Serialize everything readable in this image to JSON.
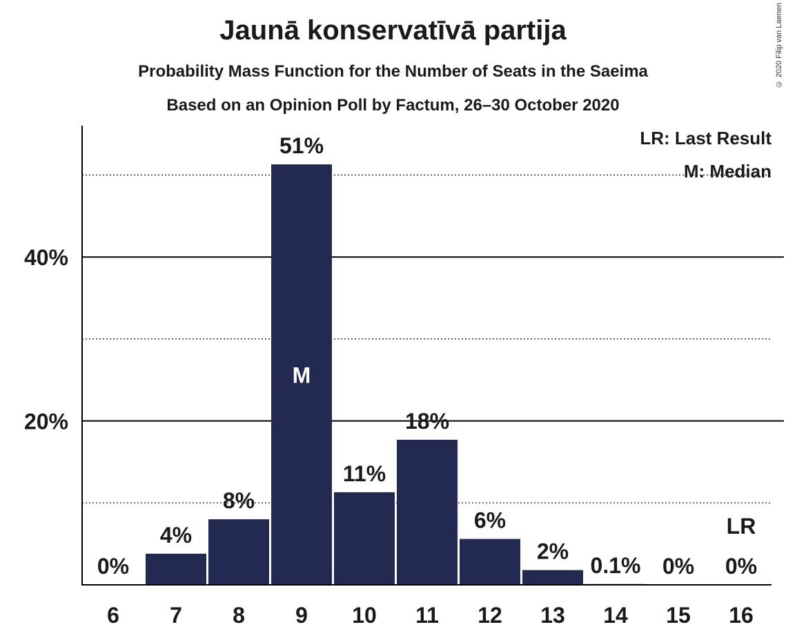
{
  "header": {
    "title": "Jaunā konservatīvā partija",
    "subtitle1": "Probability Mass Function for the Number of Seats in the Saeima",
    "subtitle2": "Based on an Opinion Poll by Factum, 26–30 October 2020",
    "copyright": "© 2020 Filip van Laenen"
  },
  "legend": {
    "last_result": "LR: Last Result",
    "median": "M: Median",
    "placement": "top-right"
  },
  "colors": {
    "bar": "#232a52",
    "axis": "#000000"
  },
  "chart_data": {
    "type": "bar",
    "title": "Jaunā konservatīvā partija",
    "xlabel": "",
    "ylabel": "",
    "categories": [
      "6",
      "7",
      "8",
      "9",
      "10",
      "11",
      "12",
      "13",
      "14",
      "15",
      "16"
    ],
    "values": [
      0,
      3.8,
      8.0,
      51.3,
      11.3,
      17.7,
      5.6,
      1.8,
      0.1,
      0,
      0
    ],
    "labels": [
      "0%",
      "4%",
      "8%",
      "51%",
      "11%",
      "18%",
      "6%",
      "2%",
      "0.1%",
      "0%",
      "0%"
    ],
    "ylim": [
      0,
      56
    ],
    "y_ticks": [
      20,
      40
    ],
    "y_tick_labels": [
      "20%",
      "40%"
    ],
    "dotted_gridlines": [
      10,
      30,
      50
    ],
    "median_index": 3,
    "median_marker": "M",
    "last_result_index": 10,
    "last_result_marker": "LR"
  }
}
